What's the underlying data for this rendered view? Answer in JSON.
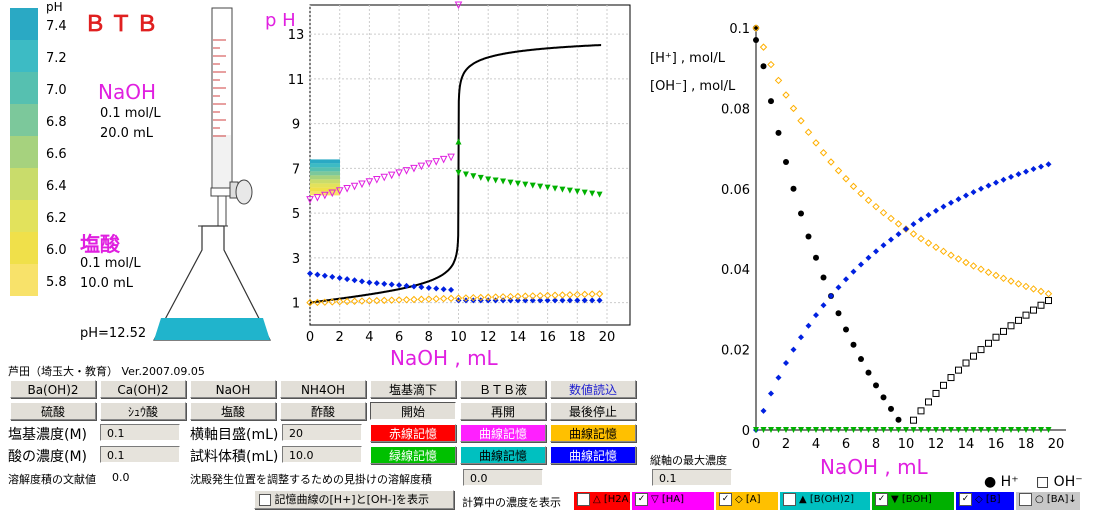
{
  "indicator": {
    "name": "ＢＴＢ",
    "ph_label": "pH",
    "scale": [
      "7.4",
      "7.2",
      "7.0",
      "6.8",
      "6.6",
      "6.4",
      "6.2",
      "6.0",
      "5.8"
    ],
    "colors": [
      "#2aa9c4",
      "#3dbbc4",
      "#56c0b0",
      "#7cc89b",
      "#a6d27e",
      "#c9dc6b",
      "#e2e25c",
      "#f0e04a",
      "#f8e26a"
    ]
  },
  "titrant": {
    "name": "NaOH",
    "conc": "0.1 mol/L",
    "vol": "20.0 mL"
  },
  "analyte": {
    "name": "塩酸",
    "conc": "0.1 mol/L",
    "vol": "10.0 mL"
  },
  "flask_ph": "pH=12.52",
  "author": "芦田（埼玉大・教育）  Ver.2007.09.05",
  "buttons": {
    "row1": [
      "Ba(OH)2",
      "Ca(OH)2",
      "NaOH",
      "NH4OH",
      "塩基滴下",
      "ＢＴＢ液",
      "数値読込"
    ],
    "row2": [
      "硫酸",
      "ｼｭｳ酸",
      "塩酸",
      "酢酸",
      "開始",
      "再開",
      "最後停止"
    ],
    "memory": [
      "赤線記憶",
      "曲線記憶",
      "曲線記憶",
      "緑線記憶",
      "曲線記憶",
      "曲線記憶"
    ]
  },
  "form": {
    "base_conc_label": "塩基濃度(M)",
    "base_conc": "0.1",
    "acid_conc_label": "酸の濃度(M)",
    "acid_conc": "0.1",
    "xdiv_label": "横軸目盛(mL)",
    "xdiv": "20",
    "sample_label": "試料体積(mL)",
    "sample": "10.0",
    "ksp_label": "溶解度積の文献値",
    "ksp": "0.0",
    "apparent_label": "沈殿発生位置を調整するための見掛けの溶解度積",
    "apparent": "0.0",
    "ymax_label": "縦軸の最大濃度",
    "ymax": "0.1"
  },
  "checkboxes": {
    "show_memory": "記憶曲線の[H+]と[OH-]を表示",
    "calc_label": "計算中の濃度を表示",
    "items": [
      {
        "label": "△ [H2A]",
        "bg": "#ff0000",
        "checked": false
      },
      {
        "label": "▽ [HA]",
        "bg": "#ff00ff",
        "checked": true
      },
      {
        "label": "◇ [A]",
        "bg": "#ffc000",
        "checked": true
      },
      {
        "label": "▲ [B(OH)2]",
        "bg": "#00c0c0",
        "checked": false
      },
      {
        "label": "▼ [BOH]",
        "bg": "#00b000",
        "checked": true
      },
      {
        "label": "◇ [B]",
        "bg": "#0000ff",
        "checked": true
      },
      {
        "label": "○ [BA]↓",
        "bg": "#c8c8c8",
        "checked": false
      }
    ]
  },
  "chart_data": [
    {
      "type": "line",
      "ylabel": "p H",
      "xlabel": "NaOH , mL",
      "xticks": [
        "0",
        "2",
        "4",
        "6",
        "8",
        "10",
        "12",
        "14",
        "16",
        "18",
        "20"
      ],
      "yticks": [
        "1",
        "3",
        "5",
        "7",
        "9",
        "11",
        "13"
      ],
      "xlim": [
        0,
        20
      ],
      "ylim": [
        0,
        14.3
      ],
      "grid": true,
      "equivalence_ml": 10
    },
    {
      "type": "scatter",
      "xlabel": "NaOH , mL",
      "ylabel_h": "[H⁺] , mol/L",
      "ylabel_oh": "[OH⁻] , mol/L",
      "xticks": [
        "0",
        "2",
        "4",
        "6",
        "8",
        "10",
        "12",
        "14",
        "16",
        "18",
        "20"
      ],
      "yticks": [
        "0",
        "0.02",
        "0.04",
        "0.06",
        "0.08",
        "0.1"
      ],
      "xlim": [
        0,
        20
      ],
      "ylim": [
        0,
        0.1
      ],
      "legend": [
        "● H⁺",
        "□ OH⁻"
      ]
    }
  ]
}
